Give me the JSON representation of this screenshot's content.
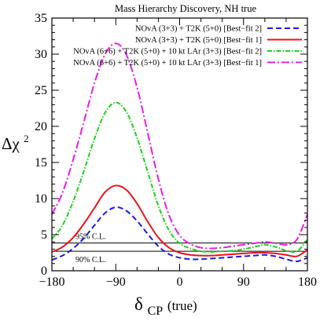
{
  "chart_data": {
    "type": "line",
    "title": "Mass Hierarchy Discovery, NH true",
    "xlabel_main": "δ",
    "xlabel_sub": "CP",
    "xlabel_suffix": " (true)",
    "ylabel_main": "Δχ",
    "ylabel_sup": "2",
    "xlim": [
      -180,
      180
    ],
    "ylim": [
      0,
      35
    ],
    "xticks": [
      -180,
      -90,
      0,
      90,
      180
    ],
    "yticks": [
      0,
      5,
      10,
      15,
      20,
      25,
      30,
      35
    ],
    "reference_lines": [
      {
        "y": 3.84,
        "label": "95% C.L."
      },
      {
        "y": 2.71,
        "label": "90% C.L."
      }
    ],
    "legend_position": "top-right",
    "series": [
      {
        "name": "NOvA (3+3) + T2K (5+0) [Best−fit 2]",
        "color": "#1a1adb",
        "dash": "7,4",
        "x": [
          -180,
          -165,
          -150,
          -135,
          -120,
          -105,
          -90,
          -75,
          -60,
          -45,
          -30,
          -15,
          0,
          15,
          30,
          45,
          60,
          75,
          90,
          105,
          120,
          135,
          150,
          165,
          180
        ],
        "y": [
          1.5,
          2.1,
          3.1,
          4.5,
          6.3,
          8.0,
          8.8,
          8.3,
          6.9,
          5.1,
          3.4,
          2.3,
          1.8,
          1.6,
          1.6,
          1.7,
          1.8,
          1.9,
          2.0,
          2.1,
          2.2,
          2.0,
          1.6,
          1.3,
          1.8
        ]
      },
      {
        "name": "NOvA (3+3) + T2K (5+0) [Best−fit 1]",
        "color": "#e8141e",
        "dash": "",
        "x": [
          -180,
          -165,
          -150,
          -135,
          -120,
          -105,
          -90,
          -75,
          -60,
          -45,
          -30,
          -15,
          0,
          15,
          30,
          45,
          60,
          75,
          90,
          105,
          120,
          135,
          150,
          165,
          180
        ],
        "y": [
          2.6,
          3.3,
          4.6,
          6.5,
          8.7,
          10.9,
          11.8,
          11.2,
          9.3,
          6.8,
          4.6,
          3.2,
          2.5,
          2.2,
          2.1,
          2.1,
          2.2,
          2.3,
          2.4,
          2.5,
          2.5,
          2.4,
          2.2,
          2.0,
          2.9
        ]
      },
      {
        "name": "NOvA (6+6) + T2K (5+0) + 10 kt LAr (3+3) [Best−fit 2]",
        "color": "#1ed21e",
        "dash": "6,2,1.5,2",
        "x": [
          -180,
          -165,
          -150,
          -135,
          -120,
          -105,
          -90,
          -75,
          -60,
          -45,
          -30,
          -15,
          0,
          15,
          30,
          45,
          60,
          75,
          90,
          105,
          120,
          135,
          150,
          165,
          180
        ],
        "y": [
          4.4,
          6.3,
          9.6,
          13.8,
          18.3,
          21.9,
          23.3,
          22.0,
          18.4,
          13.7,
          9.0,
          5.6,
          3.8,
          3.1,
          2.7,
          2.6,
          2.7,
          2.8,
          3.0,
          3.3,
          3.6,
          3.3,
          2.8,
          2.7,
          4.3
        ]
      },
      {
        "name": "NOvA (6+6) + T2K (5+0) + 10 kt LAr (3+3) [Best−fit 1]",
        "color": "#e61ee6",
        "dash": "10,3,2,3",
        "x": [
          -180,
          -165,
          -150,
          -135,
          -120,
          -105,
          -90,
          -75,
          -60,
          -45,
          -30,
          -15,
          0,
          15,
          30,
          45,
          60,
          75,
          90,
          105,
          120,
          135,
          150,
          165,
          180
        ],
        "y": [
          7.8,
          10.8,
          15.4,
          20.6,
          26.0,
          30.0,
          31.5,
          29.9,
          25.4,
          19.1,
          12.7,
          7.7,
          4.9,
          3.7,
          3.2,
          3.1,
          3.2,
          3.4,
          3.6,
          3.8,
          4.0,
          3.8,
          3.6,
          4.3,
          7.8
        ]
      }
    ]
  }
}
